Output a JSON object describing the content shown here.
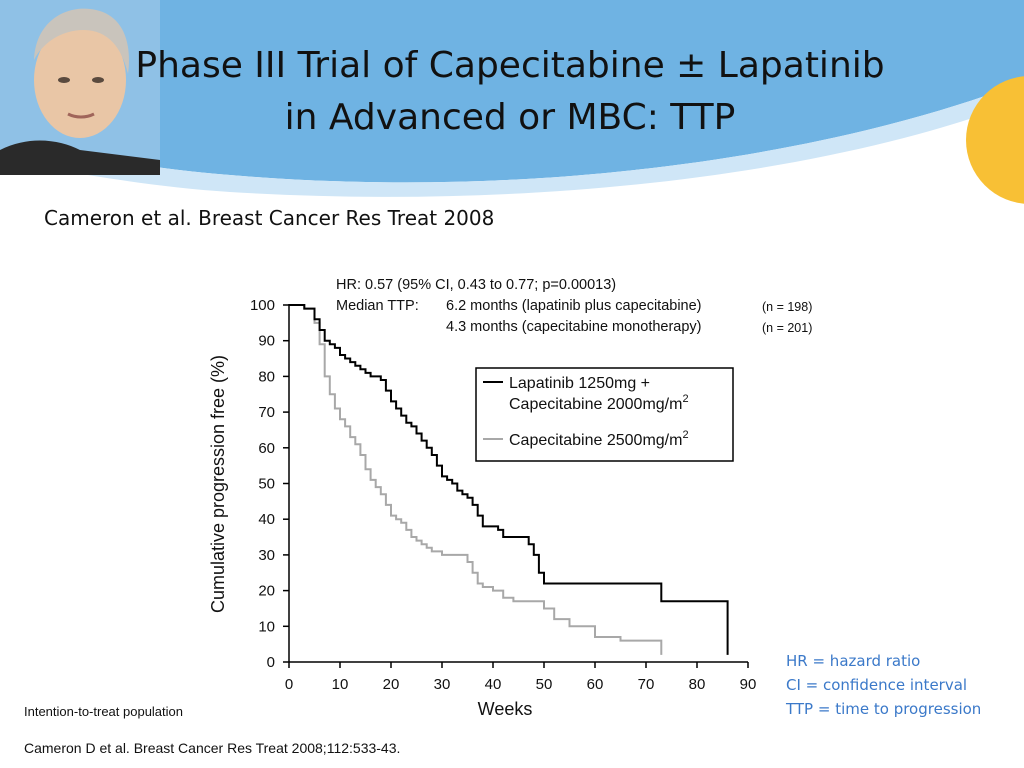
{
  "slide": {
    "title": "Phase III Trial of Capecitabine ± Lapatinib in Advanced or MBC: TTP",
    "subtitle": "Cameron et al. Breast Cancer Res Treat 2008",
    "footnote": "Intention-to-treat population",
    "citation": "Cameron D et al. Breast Cancer Res Treat 2008;112:533-43.",
    "definitions": [
      "HR = hazard ratio",
      "CI = confidence interval",
      "TTP = time to progression"
    ]
  },
  "colors": {
    "header_blue": "#6fb3e3",
    "sun_orange": "#f8c035",
    "definition_text": "#3b79c9",
    "lapatinib_line": "#000000",
    "capecitabine_line": "#a8a8a8"
  },
  "icons": [
    "woman-portrait-photo",
    "sun-shape"
  ],
  "chart_data": {
    "type": "line",
    "step": true,
    "title": "",
    "xlabel": "Weeks",
    "ylabel": "Cumulative progression free (%)",
    "xlim": [
      0,
      90
    ],
    "ylim": [
      0,
      100
    ],
    "xticks": [
      0,
      10,
      20,
      30,
      40,
      50,
      60,
      70,
      80,
      90
    ],
    "yticks": [
      0,
      10,
      20,
      30,
      40,
      50,
      60,
      70,
      80,
      90,
      100
    ],
    "grid": false,
    "legend_placement": "top-right",
    "annotations": {
      "hr_line": "HR: 0.57 (95% CI, 0.43 to 0.77; p=0.00013)",
      "median_label": "Median TTP:",
      "median_lapatinib": "6.2 months (lapatinib plus capecitabine)",
      "median_capecitabine": "4.3 months (capecitabine monotherapy)",
      "n_lapatinib": "(n = 198)",
      "n_capecitabine": "(n = 201)"
    },
    "series": [
      {
        "name_lines": [
          "Lapatinib 1250mg +",
          "Capecitabine 2000mg/m"
        ],
        "name_sup": "2",
        "color": "#000000",
        "x": [
          0,
          3,
          5,
          6,
          7,
          8,
          9,
          10,
          11,
          12,
          13,
          14,
          15,
          16,
          17,
          18,
          19,
          20,
          21,
          22,
          23,
          24,
          25,
          26,
          27,
          28,
          29,
          30,
          31,
          32,
          33,
          34,
          35,
          36,
          37,
          38,
          40,
          41,
          42,
          43,
          45,
          46,
          47,
          48,
          49,
          50,
          52,
          55,
          60,
          65,
          70,
          73,
          75,
          80,
          85,
          86
        ],
        "y": [
          100,
          99,
          96,
          93,
          90,
          89,
          88,
          86,
          85,
          84,
          83,
          82,
          81,
          80,
          80,
          79,
          76,
          73,
          71,
          69,
          67,
          66,
          64,
          62,
          60,
          58,
          55,
          52,
          51,
          50,
          48,
          47,
          46,
          44,
          41,
          38,
          38,
          37,
          35,
          35,
          35,
          35,
          33,
          30,
          25,
          22,
          22,
          22,
          22,
          22,
          22,
          17,
          17,
          17,
          17,
          2
        ]
      },
      {
        "name_lines": [
          "Capecitabine 2500mg/m"
        ],
        "name_sup": "2",
        "color": "#a8a8a8",
        "x": [
          0,
          3,
          5,
          6,
          7,
          8,
          9,
          10,
          11,
          12,
          13,
          14,
          15,
          16,
          17,
          18,
          19,
          20,
          21,
          22,
          23,
          24,
          25,
          26,
          27,
          28,
          30,
          33,
          34,
          35,
          36,
          37,
          38,
          40,
          42,
          44,
          46,
          48,
          50,
          52,
          55,
          60,
          65,
          70,
          72,
          73
        ],
        "y": [
          100,
          99,
          95,
          89,
          80,
          75,
          71,
          68,
          66,
          63,
          61,
          58,
          54,
          51,
          49,
          47,
          44,
          41,
          40,
          39,
          37,
          35,
          34,
          33,
          32,
          31,
          30,
          30,
          30,
          28,
          25,
          22,
          21,
          20,
          18,
          17,
          17,
          17,
          15,
          12,
          10,
          7,
          6,
          6,
          6,
          2
        ]
      }
    ]
  }
}
